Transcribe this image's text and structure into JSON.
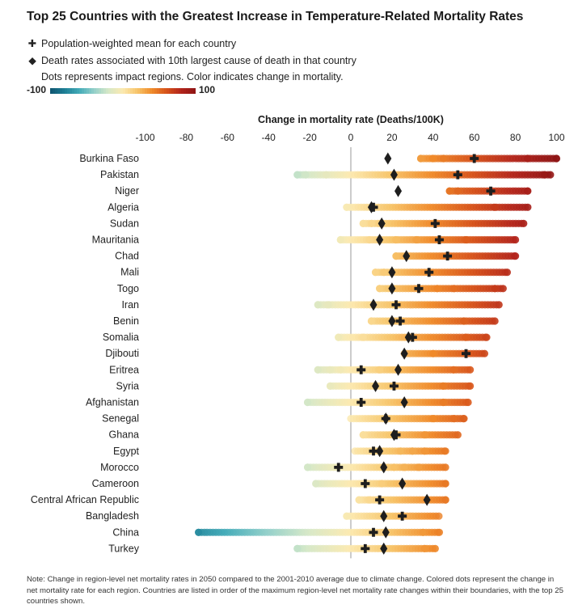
{
  "title": "Top 25 Countries with the Greatest Increase in Temperature-Related Mortality Rates",
  "legend": {
    "mean_symbol": "✚",
    "mean_label": "Population-weighted mean for each country",
    "cause_symbol": "◆",
    "cause_label": "Death rates associated with 10th largest cause of death in that country",
    "dots_label": "Dots represents impact regions. Color indicates change in mortality.",
    "scale_min": "-100",
    "scale_max": "100"
  },
  "note": "Note: Change in region-level net mortality rates in 2050 compared to the 2001-2010 average due to climate change. Colored dots represent the change in net mortality rate for each region. Countries are listed in order of the maximum region-level net mortality rate changes within their boundaries, with the top 25 countries shown.",
  "colors": {
    "scale": [
      "#0f5470",
      "#1d7f95",
      "#43abb8",
      "#92cfc9",
      "#d6e8c7",
      "#fbe9b0",
      "#f7c469",
      "#ef8a2a",
      "#d6521a",
      "#b2241b",
      "#8e1414"
    ]
  },
  "chart_data": {
    "type": "scatter",
    "xlabel": "Change in mortality rate (Deaths/100K)",
    "xlim": [
      -100,
      100
    ],
    "xticks": [
      -100,
      -80,
      -60,
      -40,
      -20,
      0,
      20,
      40,
      60,
      80,
      100
    ],
    "xtick_labels": [
      "-100",
      "-80",
      "-60",
      "-40",
      "-20",
      "0",
      "20",
      "40",
      "60",
      "80",
      "100"
    ],
    "countries": [
      {
        "name": "Burkina Faso",
        "min": 34,
        "max": 100,
        "mean": 60,
        "cause": 18,
        "outliers": [
          34,
          40,
          45,
          86,
          100
        ]
      },
      {
        "name": "Pakistan",
        "min": -26,
        "max": 97,
        "mean": 52,
        "cause": 21,
        "outliers": [
          -26,
          -22,
          -12,
          94,
          97
        ]
      },
      {
        "name": "Niger",
        "min": 48,
        "max": 86,
        "mean": 68,
        "cause": 23,
        "outliers": [
          48,
          52,
          86
        ]
      },
      {
        "name": "Algeria",
        "min": -2,
        "max": 86,
        "mean": 11,
        "cause": 10,
        "outliers": [
          -2,
          70,
          86
        ]
      },
      {
        "name": "Sudan",
        "min": 6,
        "max": 84,
        "mean": 41,
        "cause": 15,
        "outliers": [
          6,
          10,
          14,
          84
        ]
      },
      {
        "name": "Mauritania",
        "min": -5,
        "max": 80,
        "mean": 43,
        "cause": 14,
        "outliers": [
          -5,
          9,
          22,
          32,
          56,
          80
        ]
      },
      {
        "name": "Chad",
        "min": 22,
        "max": 80,
        "mean": 47,
        "cause": 27,
        "outliers": [
          22,
          80
        ]
      },
      {
        "name": "Mali",
        "min": 12,
        "max": 76,
        "mean": 38,
        "cause": 20,
        "outliers": [
          12,
          16,
          76
        ]
      },
      {
        "name": "Togo",
        "min": 14,
        "max": 74,
        "mean": 33,
        "cause": 20,
        "outliers": [
          14,
          42,
          50,
          70,
          74
        ]
      },
      {
        "name": "Iran",
        "min": -16,
        "max": 72,
        "mean": 22,
        "cause": 11,
        "outliers": [
          -16,
          -11,
          72
        ]
      },
      {
        "name": "Benin",
        "min": 10,
        "max": 70,
        "mean": 24,
        "cause": 20,
        "outliers": [
          10,
          55,
          70
        ]
      },
      {
        "name": "Somalia",
        "min": -6,
        "max": 66,
        "mean": 30,
        "cause": 28,
        "outliers": [
          -6,
          6,
          56,
          66
        ]
      },
      {
        "name": "Djibouti",
        "min": 26,
        "max": 65,
        "mean": 56,
        "cause": 26,
        "outliers": [
          40,
          65
        ]
      },
      {
        "name": "Eritrea",
        "min": -16,
        "max": 58,
        "mean": 5,
        "cause": 23,
        "outliers": [
          -16,
          -10,
          -5,
          14,
          50,
          58
        ]
      },
      {
        "name": "Syria",
        "min": -10,
        "max": 58,
        "mean": 21,
        "cause": 12,
        "outliers": [
          -10,
          45,
          58
        ]
      },
      {
        "name": "Afghanistan",
        "min": -21,
        "max": 57,
        "mean": 5,
        "cause": 26,
        "outliers": [
          -21,
          45,
          57
        ]
      },
      {
        "name": "Senegal",
        "min": 0,
        "max": 55,
        "mean": 17,
        "cause": 17,
        "outliers": [
          40,
          50,
          55
        ]
      },
      {
        "name": "Ghana",
        "min": 6,
        "max": 52,
        "mean": 22,
        "cause": 21,
        "outliers": [
          6,
          36,
          52
        ]
      },
      {
        "name": "Egypt",
        "min": 2,
        "max": 46,
        "mean": 11,
        "cause": 14,
        "outliers": [
          24,
          30,
          36,
          46
        ]
      },
      {
        "name": "Morocco",
        "min": -21,
        "max": 46,
        "mean": -6,
        "cause": 16,
        "outliers": [
          -21,
          21,
          26,
          33,
          46
        ]
      },
      {
        "name": "Cameroon",
        "min": -17,
        "max": 46,
        "mean": 7,
        "cause": 25,
        "outliers": [
          -17,
          15,
          46
        ]
      },
      {
        "name": "Central African Republic",
        "min": 4,
        "max": 46,
        "mean": 14,
        "cause": 37,
        "outliers": [
          4,
          9,
          46
        ]
      },
      {
        "name": "Bangladesh",
        "min": -2,
        "max": 44,
        "mean": 25,
        "cause": 16,
        "outliers": [
          -2
        ]
      },
      {
        "name": "China",
        "min": -74,
        "max": 43,
        "mean": 11,
        "cause": 17,
        "outliers": [
          -74,
          35,
          43
        ]
      },
      {
        "name": "Turkey",
        "min": -26,
        "max": 41,
        "mean": 7,
        "cause": 16,
        "outliers": [
          -26,
          36,
          41
        ]
      }
    ]
  }
}
